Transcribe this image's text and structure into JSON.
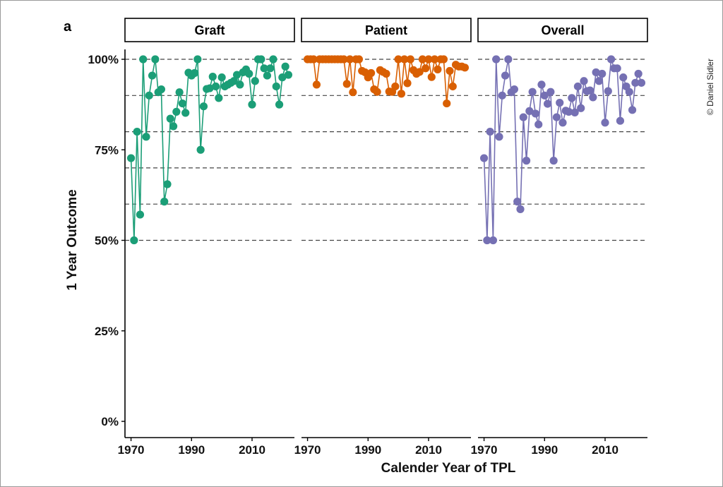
{
  "figure_letter": "a",
  "copyright": "© Daniel Sidler",
  "chart_data": {
    "type": "line",
    "xlabel": "Calender Year of TPL",
    "ylabel": "1 Year Outcome",
    "ylim": [
      0,
      1
    ],
    "xlim": [
      1968,
      2024
    ],
    "x_ticks": [
      1970,
      1990,
      2010
    ],
    "x_tick_labels": [
      "1970",
      "1990",
      "2010"
    ],
    "y_ticks": [
      0,
      0.25,
      0.5,
      0.75,
      1.0
    ],
    "y_tick_labels": [
      "0%",
      "25%",
      "50%",
      "75%",
      "100%"
    ],
    "reference_lines": [
      0.5,
      0.6,
      0.7,
      0.8,
      0.9,
      1.0
    ],
    "grid": false,
    "legend": "none",
    "panels": [
      {
        "name": "Graft",
        "color": "#1b9e77",
        "x": [
          1970,
          1971,
          1972,
          1973,
          1974,
          1975,
          1976,
          1977,
          1978,
          1979,
          1980,
          1981,
          1982,
          1983,
          1984,
          1985,
          1986,
          1987,
          1988,
          1989,
          1990,
          1991,
          1992,
          1993,
          1994,
          1995,
          1996,
          1997,
          1998,
          1999,
          2000,
          2001,
          2002,
          2003,
          2004,
          2005,
          2006,
          2007,
          2008,
          2009,
          2010,
          2011,
          2012,
          2013,
          2014,
          2015,
          2016,
          2017,
          2018,
          2019,
          2020,
          2021,
          2022
        ],
        "y": [
          0.727,
          0.5,
          0.8,
          0.571,
          1.0,
          0.786,
          0.9,
          0.955,
          1.0,
          0.909,
          0.917,
          0.607,
          0.655,
          0.836,
          0.815,
          0.855,
          0.909,
          0.878,
          0.852,
          0.963,
          0.955,
          0.962,
          1.0,
          0.75,
          0.87,
          0.918,
          0.92,
          0.952,
          0.925,
          0.893,
          0.95,
          0.925,
          0.93,
          0.935,
          0.94,
          0.957,
          0.93,
          0.964,
          0.972,
          0.96,
          0.875,
          0.94,
          1.0,
          1.0,
          0.975,
          0.955,
          0.975,
          1.0,
          0.925,
          0.875,
          0.95,
          0.98,
          0.957
        ]
      },
      {
        "name": "Patient",
        "color": "#d95f02",
        "x": [
          1970,
          1971,
          1972,
          1973,
          1974,
          1975,
          1976,
          1977,
          1978,
          1979,
          1980,
          1981,
          1982,
          1983,
          1984,
          1985,
          1986,
          1987,
          1988,
          1989,
          1990,
          1991,
          1992,
          1993,
          1994,
          1995,
          1996,
          1997,
          1998,
          1999,
          2000,
          2001,
          2002,
          2003,
          2004,
          2005,
          2006,
          2007,
          2008,
          2009,
          2010,
          2011,
          2012,
          2013,
          2014,
          2015,
          2016,
          2017,
          2018,
          2019,
          2020,
          2021,
          2022
        ],
        "y": [
          1.0,
          1.0,
          1.0,
          0.93,
          1.0,
          1.0,
          1.0,
          1.0,
          1.0,
          1.0,
          1.0,
          1.0,
          1.0,
          0.932,
          1.0,
          0.909,
          1.0,
          1.0,
          0.968,
          0.964,
          0.95,
          0.962,
          0.917,
          0.91,
          0.97,
          0.965,
          0.96,
          0.911,
          0.91,
          0.925,
          1.0,
          0.905,
          1.0,
          0.934,
          1.0,
          0.97,
          0.96,
          0.965,
          1.0,
          0.975,
          1.0,
          0.951,
          1.0,
          0.972,
          1.0,
          1.0,
          0.878,
          0.968,
          0.925,
          0.985,
          0.98,
          0.98,
          0.977
        ]
      },
      {
        "name": "Overall",
        "color": "#7570b3",
        "x": [
          1970,
          1971,
          1972,
          1973,
          1974,
          1975,
          1976,
          1977,
          1978,
          1979,
          1980,
          1981,
          1982,
          1983,
          1984,
          1985,
          1986,
          1987,
          1988,
          1989,
          1990,
          1991,
          1992,
          1993,
          1994,
          1995,
          1996,
          1997,
          1998,
          1999,
          2000,
          2001,
          2002,
          2003,
          2004,
          2005,
          2006,
          2007,
          2008,
          2009,
          2010,
          2011,
          2012,
          2013,
          2014,
          2015,
          2016,
          2017,
          2018,
          2019,
          2020,
          2021,
          2022
        ],
        "y": [
          0.727,
          0.5,
          0.8,
          0.5,
          1.0,
          0.786,
          0.9,
          0.955,
          1.0,
          0.909,
          0.917,
          0.607,
          0.586,
          0.84,
          0.72,
          0.857,
          0.91,
          0.85,
          0.82,
          0.93,
          0.9,
          0.877,
          0.91,
          0.72,
          0.84,
          0.88,
          0.825,
          0.858,
          0.855,
          0.893,
          0.853,
          0.925,
          0.865,
          0.94,
          0.912,
          0.914,
          0.895,
          0.964,
          0.94,
          0.96,
          0.825,
          0.912,
          1.0,
          0.975,
          0.975,
          0.83,
          0.95,
          0.925,
          0.91,
          0.86,
          0.935,
          0.96,
          0.935
        ]
      }
    ]
  }
}
